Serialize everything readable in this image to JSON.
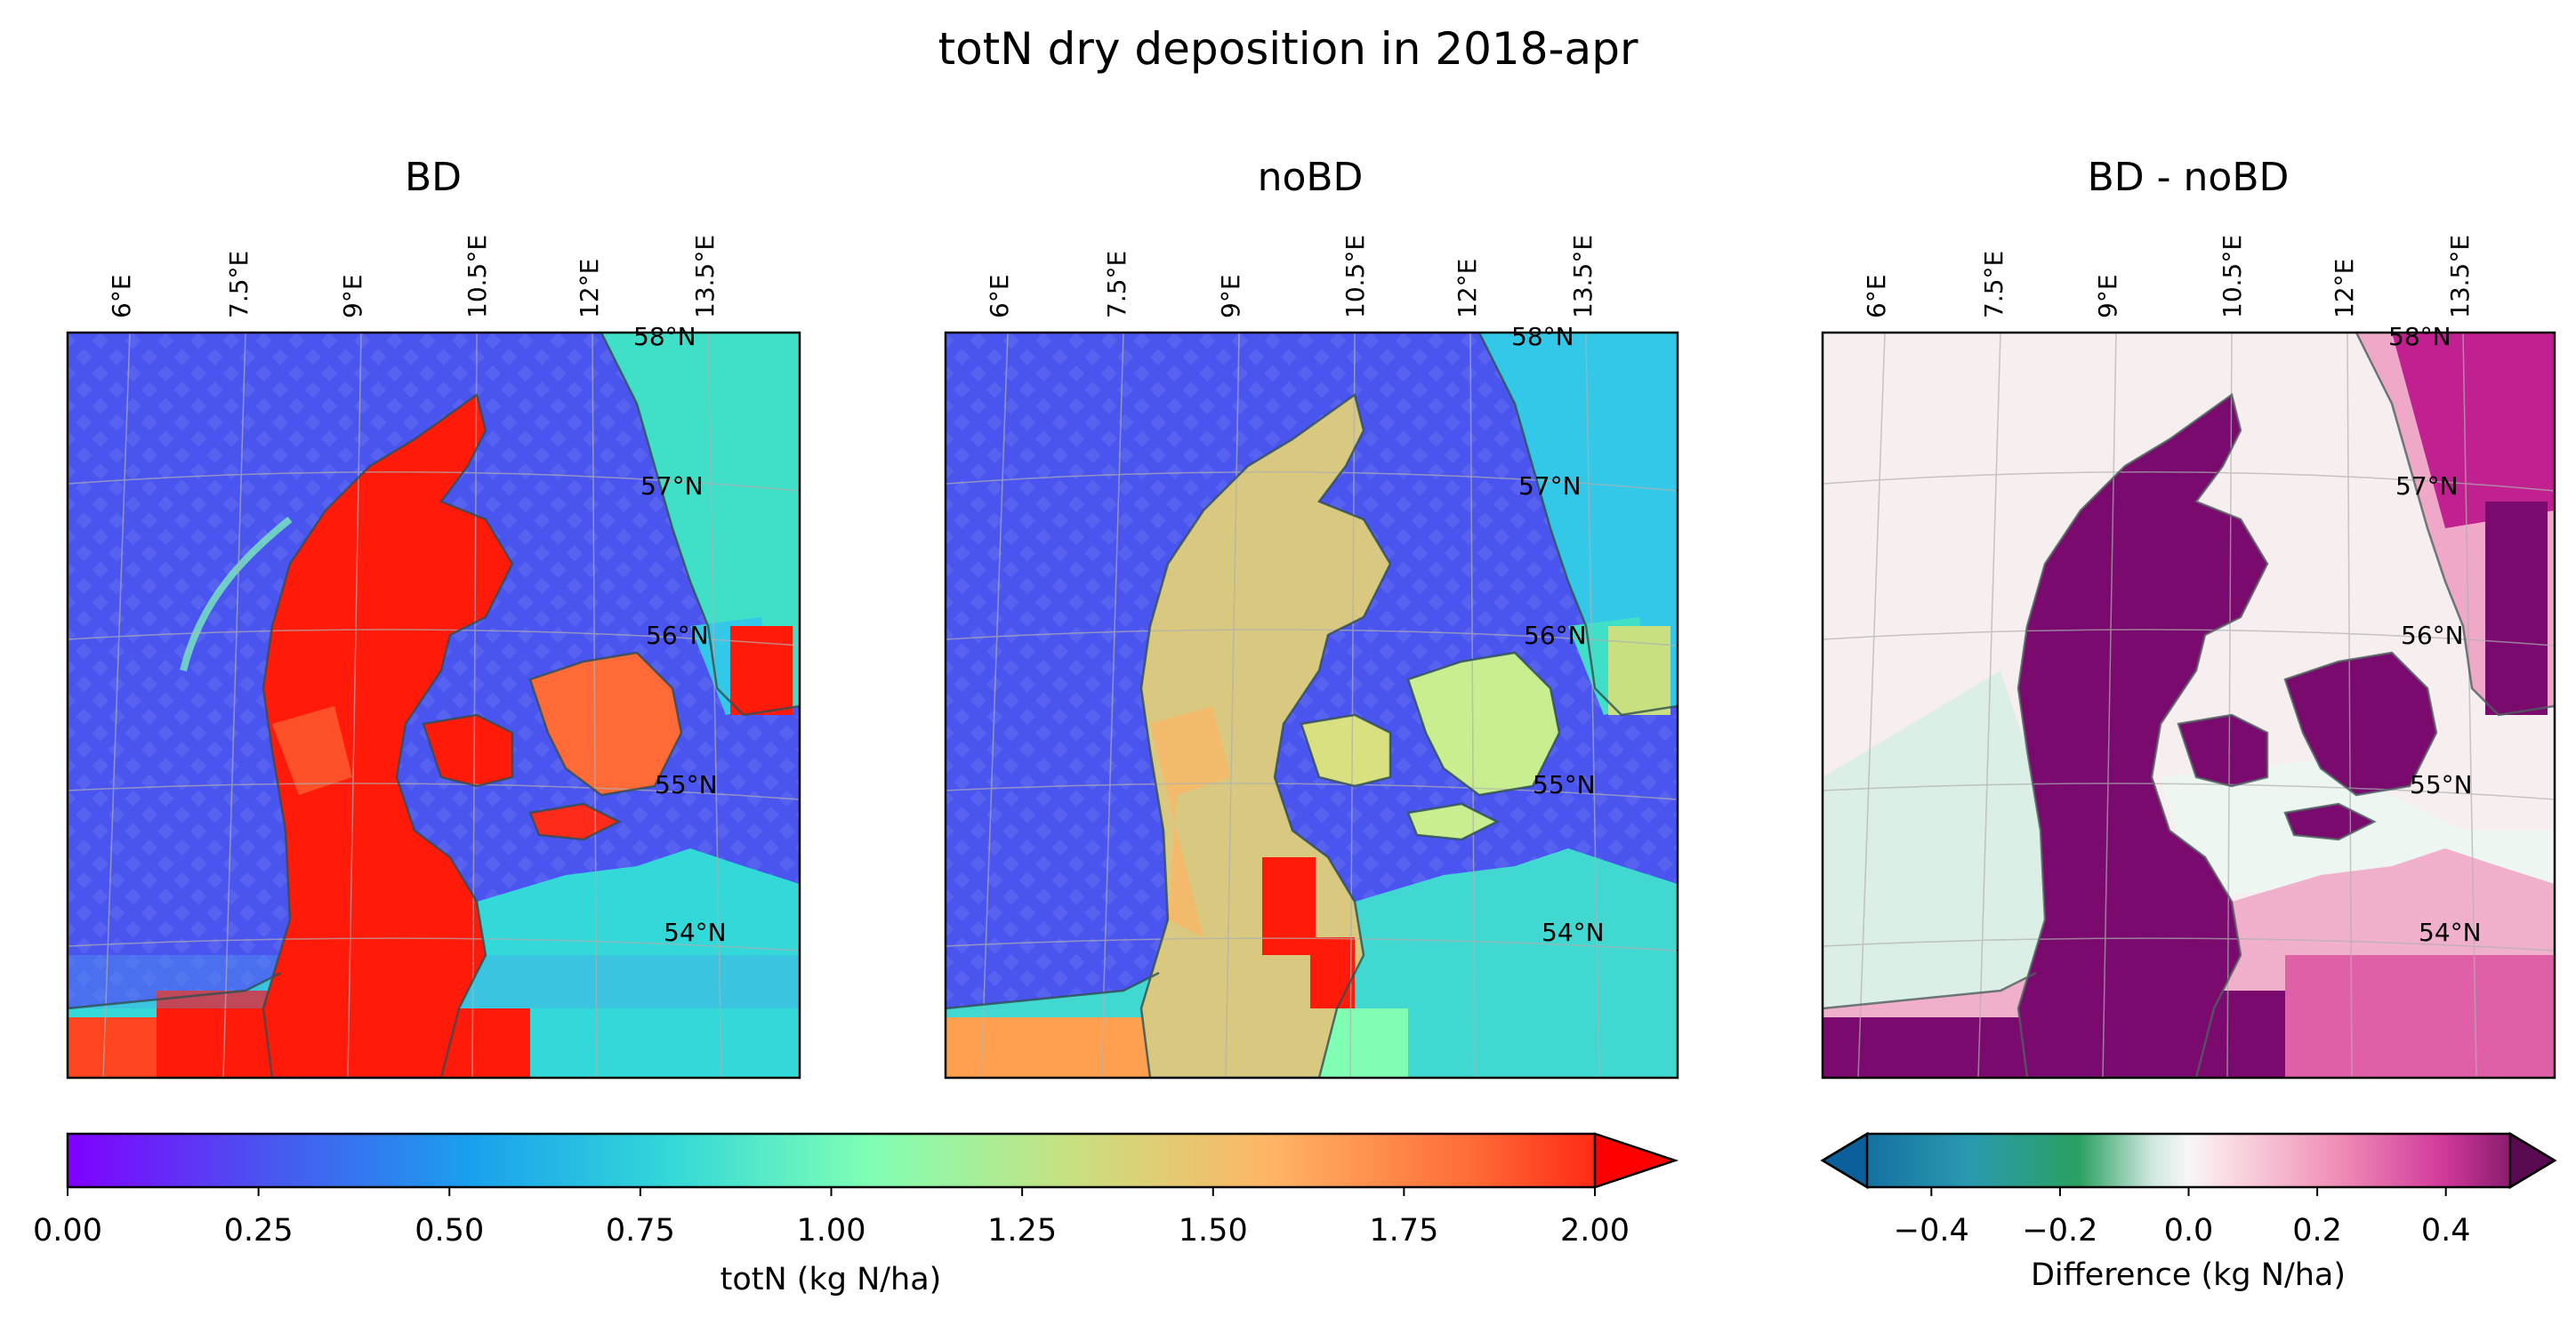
{
  "title": "totN dry deposition in 2018-apr",
  "panels": [
    {
      "id": "bd",
      "title": "BD",
      "field": "totN",
      "map_color_scale": "rainbow 0–2"
    },
    {
      "id": "nobd",
      "title": "noBD",
      "field": "totN",
      "map_color_scale": "rainbow 0–2"
    },
    {
      "id": "diff",
      "title": "BD - noBD",
      "field": "difference",
      "map_color_scale": "PuRd / BuGn diverging −0.5–0.5"
    }
  ],
  "lon_ticks": [
    "6°E",
    "7.5°E",
    "9°E",
    "10.5°E",
    "12°E",
    "13.5°E"
  ],
  "lat_ticks": [
    "58°N",
    "57°N",
    "56°N",
    "55°N",
    "54°N"
  ],
  "colorbar_left": {
    "label": "totN (kg N/ha)",
    "ticks": [
      "0.00",
      "0.25",
      "0.50",
      "0.75",
      "1.00",
      "1.25",
      "1.50",
      "1.75",
      "2.00"
    ],
    "range": [
      0,
      2
    ],
    "extend": "max",
    "colormap": "rainbow"
  },
  "colorbar_right": {
    "label": "Difference (kg N/ha)",
    "ticks": [
      "−0.4",
      "−0.2",
      "0.0",
      "0.2",
      "0.4"
    ],
    "range": [
      -0.5,
      0.5
    ],
    "extend": "both",
    "colormap": "diverging teal-white-magenta"
  },
  "colors": {
    "sea_low": "#4a55f0",
    "land_high": "#ff1a0a",
    "mid_cyan": "#33d8d8",
    "diff_pos": "#7a0a6e",
    "diff_neg": "#1a6aa0",
    "coast": "#2f4f4f"
  }
}
